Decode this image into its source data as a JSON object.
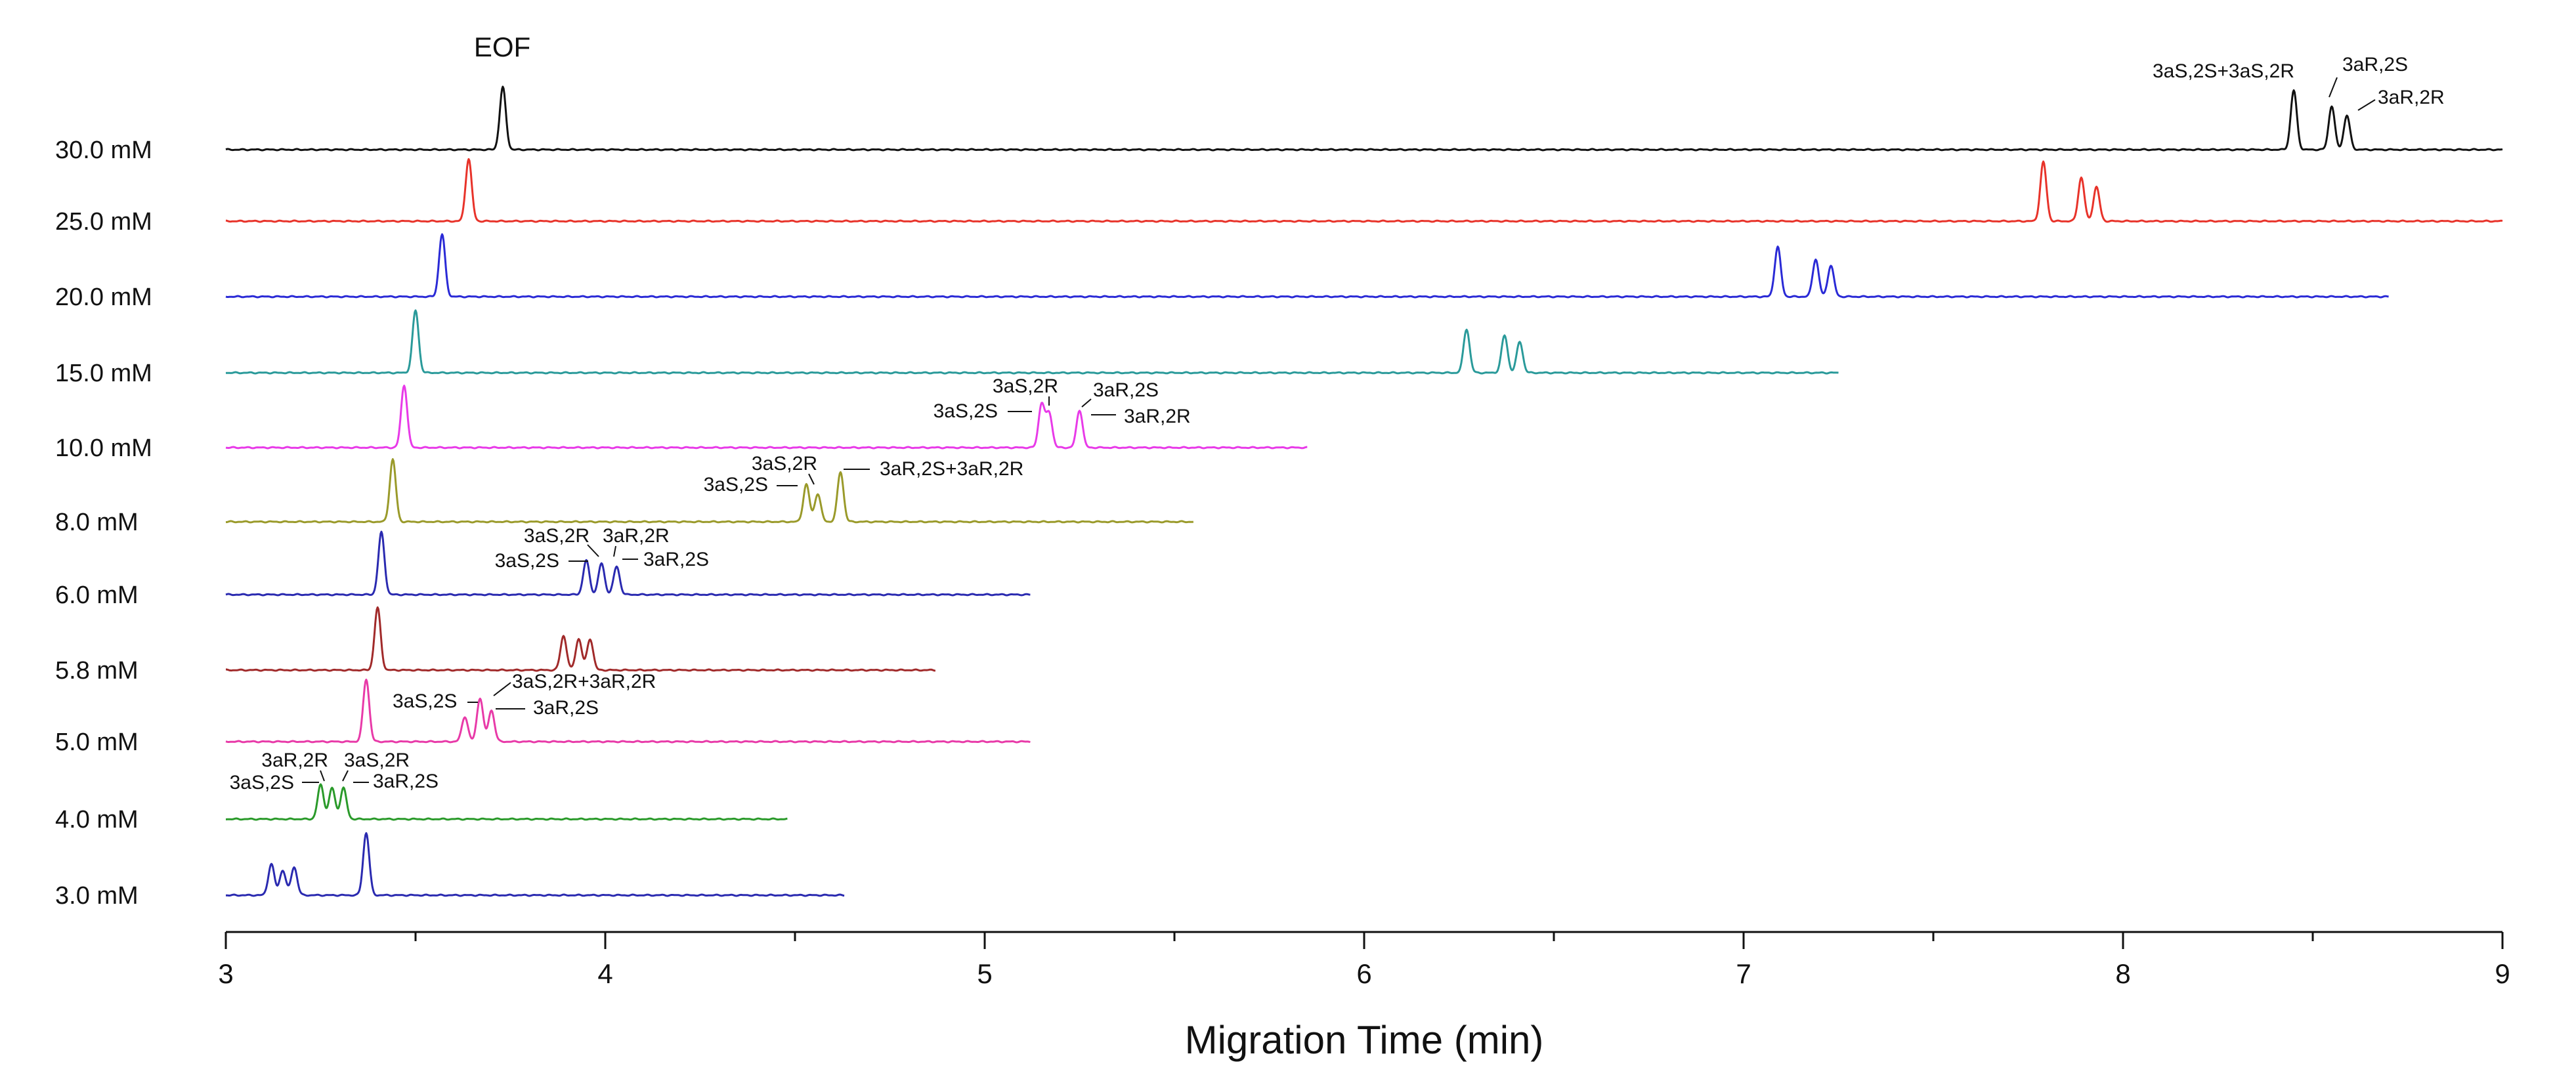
{
  "chart_data": {
    "type": "line",
    "title": "",
    "xlabel": "Migration Time (min)",
    "ylabel": "",
    "xlim": [
      3,
      9
    ],
    "xticks": [
      "3",
      "4",
      "5",
      "6",
      "7",
      "8",
      "9"
    ],
    "x_tick_values": [
      3,
      4,
      5,
      6,
      7,
      8,
      9
    ],
    "eof_label": "EOF",
    "series": [
      {
        "name": "30.0 mM",
        "color": "#111111",
        "end": 9.0,
        "peaks": [
          {
            "t": 3.73,
            "h": 1.0
          },
          {
            "t": 8.45,
            "h": 0.95
          },
          {
            "t": 8.55,
            "h": 0.7
          },
          {
            "t": 8.59,
            "h": 0.55
          }
        ]
      },
      {
        "name": "25.0 mM",
        "color": "#e8332a",
        "end": 9.0,
        "peaks": [
          {
            "t": 3.64,
            "h": 1.0
          },
          {
            "t": 7.79,
            "h": 0.95
          },
          {
            "t": 7.89,
            "h": 0.7
          },
          {
            "t": 7.93,
            "h": 0.55
          }
        ]
      },
      {
        "name": "20.0 mM",
        "color": "#2a2ad6",
        "end": 8.7,
        "peaks": [
          {
            "t": 3.57,
            "h": 1.0
          },
          {
            "t": 7.09,
            "h": 0.8
          },
          {
            "t": 7.19,
            "h": 0.6
          },
          {
            "t": 7.23,
            "h": 0.5
          }
        ]
      },
      {
        "name": "15.0 mM",
        "color": "#2a9a9a",
        "end": 7.25,
        "peaks": [
          {
            "t": 3.5,
            "h": 1.0
          },
          {
            "t": 6.27,
            "h": 0.7
          },
          {
            "t": 6.37,
            "h": 0.6
          },
          {
            "t": 6.41,
            "h": 0.5
          }
        ]
      },
      {
        "name": "10.0 mM",
        "color": "#e83ae8",
        "end": 5.85,
        "peaks": [
          {
            "t": 3.47,
            "h": 1.0
          },
          {
            "t": 5.15,
            "h": 0.7
          },
          {
            "t": 5.17,
            "h": 0.55
          },
          {
            "t": 5.25,
            "h": 0.6
          }
        ]
      },
      {
        "name": "8.0 mM",
        "color": "#9a9a2a",
        "end": 5.55,
        "peaks": [
          {
            "t": 3.44,
            "h": 1.0
          },
          {
            "t": 4.53,
            "h": 0.6
          },
          {
            "t": 4.56,
            "h": 0.45
          },
          {
            "t": 4.62,
            "h": 0.8
          }
        ]
      },
      {
        "name": "6.0 mM",
        "color": "#2a2ab0",
        "end": 5.12,
        "peaks": [
          {
            "t": 3.41,
            "h": 1.0
          },
          {
            "t": 3.95,
            "h": 0.55
          },
          {
            "t": 3.99,
            "h": 0.5
          },
          {
            "t": 4.03,
            "h": 0.45
          }
        ]
      },
      {
        "name": "5.8 mM",
        "color": "#a12a2a",
        "end": 4.87,
        "peaks": [
          {
            "t": 3.4,
            "h": 1.0
          },
          {
            "t": 3.89,
            "h": 0.55
          },
          {
            "t": 3.93,
            "h": 0.5
          },
          {
            "t": 3.96,
            "h": 0.5
          }
        ]
      },
      {
        "name": "5.0 mM",
        "color": "#e83aa8",
        "end": 5.12,
        "peaks": [
          {
            "t": 3.37,
            "h": 1.0
          },
          {
            "t": 3.63,
            "h": 0.4
          },
          {
            "t": 3.67,
            "h": 0.7
          },
          {
            "t": 3.7,
            "h": 0.5
          }
        ]
      },
      {
        "name": "4.0 mM",
        "color": "#2a9a2a",
        "end": 4.48,
        "peaks": [
          {
            "t": 3.25,
            "h": 0.55
          },
          {
            "t": 3.28,
            "h": 0.5
          },
          {
            "t": 3.31,
            "h": 0.5
          }
        ]
      },
      {
        "name": "3.0 mM",
        "color": "#2a2ab0",
        "end": 4.63,
        "peaks": [
          {
            "t": 3.12,
            "h": 0.5
          },
          {
            "t": 3.15,
            "h": 0.4
          },
          {
            "t": 3.18,
            "h": 0.45
          },
          {
            "t": 3.37,
            "h": 1.0
          }
        ]
      }
    ],
    "annotations": {
      "30.0 mM": [
        "3aS,2S+3aS,2R",
        "3aR,2S",
        "3aR,2R"
      ],
      "10.0 mM": [
        "3aS,2R",
        "3aR,2S",
        "3aS,2S",
        "3aR,2R"
      ],
      "8.0 mM": [
        "3aS,2R",
        "3aR,2S+3aR,2R",
        "3aS,2S"
      ],
      "6.0 mM": [
        "3aS,2R",
        "3aR,2R",
        "3aS,2S",
        "3aR,2S"
      ],
      "5.0 mM": [
        "3aS,2S",
        "3aS,2R+3aR,2R",
        "3aR,2S"
      ],
      "4.0 mM": [
        "3aR,2R",
        "3aS,2R",
        "3aS,2S",
        "3aR,2S"
      ]
    }
  }
}
